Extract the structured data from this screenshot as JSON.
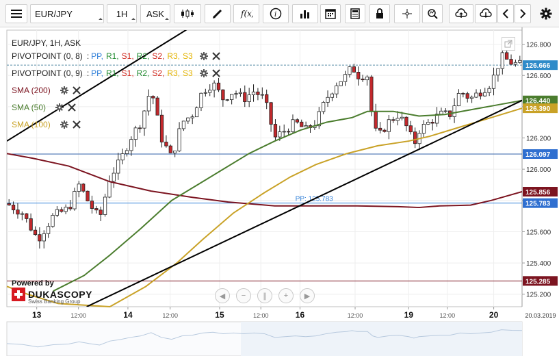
{
  "toolbar": {
    "menu_icon": "hamburger-menu-icon",
    "symbol": "EUR/JPY",
    "timeframe": "1H",
    "price_side": "ASK",
    "icons": [
      "candlestick-chart-icon",
      "pencil-draw-icon",
      "function-fx-icon",
      "info-icon",
      "bar-volume-icon",
      "calendar-icon",
      "news-icon",
      "lock-icon",
      "crosshair-icon",
      "zoom-icon",
      "upload-cloud-icon",
      "download-cloud-icon",
      "arrow-left-icon",
      "arrow-right-icon",
      "gear-settings-icon"
    ]
  },
  "chart_title": "EUR/JPY, 1H, ASK",
  "legend": {
    "pivot1_name": "PIVOTPOINT (0, 8)",
    "pivot2_name": "PIVOTPOINT (0, 9)",
    "pivot_sep": ":",
    "pivot_items": [
      "PP",
      "R1",
      "S1",
      "R2",
      "S2",
      "R3",
      "S3"
    ],
    "pivot_colors": [
      "#2f7fd8",
      "#1e8a2e",
      "#d0281e",
      "#1e8a2e",
      "#d0281e",
      "#e3b300",
      "#e3b300"
    ],
    "sma200": "SMA (200)",
    "sma50": "SMA (50)",
    "sma100": "SMA (100)"
  },
  "branding": {
    "powered_by": "Powered by",
    "logo_text": "DUKASCOPY",
    "logo_sub": "Swiss Banking Group"
  },
  "colors": {
    "sma200": "#7c1420",
    "sma50": "#4b7d2e",
    "sma100": "#c9a227",
    "candle_up": "#ffffff",
    "candle_down": "#c3282c",
    "trendline": "#000000",
    "pp_line": "#2f7fd8",
    "price_badge": "#2e8bc9"
  },
  "chart_data": {
    "type": "candlestick",
    "symbol": "EUR/JPY",
    "timeframe": "1H",
    "y_ticks": [
      125.2,
      125.4,
      125.6,
      125.8,
      126.0,
      126.2,
      126.4,
      126.6,
      126.8
    ],
    "y_tick_labels": [
      "125.200",
      "125.400",
      "125.600",
      "125.800",
      "126.000",
      "126.200",
      "126.400",
      "126.600",
      "126.800"
    ],
    "ylim": [
      125.12,
      126.89
    ],
    "x_ticks": [
      {
        "label": "13",
        "major": true,
        "frac": 0.058
      },
      {
        "label": "12:00",
        "major": false,
        "frac": 0.139
      },
      {
        "label": "14",
        "major": true,
        "frac": 0.235
      },
      {
        "label": "12:00",
        "major": false,
        "frac": 0.317
      },
      {
        "label": "15",
        "major": true,
        "frac": 0.413
      },
      {
        "label": "12:00",
        "major": false,
        "frac": 0.493
      },
      {
        "label": "16",
        "major": true,
        "frac": 0.569
      },
      {
        "label": "12:00",
        "major": false,
        "frac": 0.676
      },
      {
        "label": "19",
        "major": true,
        "frac": 0.78
      },
      {
        "label": "12:00",
        "major": false,
        "frac": 0.855
      },
      {
        "label": "20",
        "major": true,
        "frac": 0.945
      }
    ],
    "date_label": "20.03.2019",
    "horizontal_lines": [
      {
        "name": "PP",
        "value": 125.783,
        "label": "PP: 125.783",
        "color": "#2f7fd8"
      },
      {
        "name": "current",
        "value": 126.666,
        "color": "#5a8fa8"
      },
      {
        "name": "level",
        "value": 126.097,
        "color": "#2f5fa8"
      },
      {
        "name": "level",
        "value": 125.285,
        "color": "#7c1420"
      }
    ],
    "price_badges": [
      {
        "value": 126.666,
        "label": "126.666",
        "color": "#2e8bc9"
      },
      {
        "value": 126.44,
        "label": "126.440",
        "color": "#4b7d2e"
      },
      {
        "value": 126.39,
        "label": "126.390",
        "color": "#c9a227"
      },
      {
        "value": 126.097,
        "label": "126.097",
        "color": "#2f6fd0"
      },
      {
        "value": 125.856,
        "label": "125.856",
        "color": "#7c1420"
      },
      {
        "value": 125.783,
        "label": "125.783",
        "color": "#2f6fd0"
      },
      {
        "value": 125.285,
        "label": "125.285",
        "color": "#7c1420"
      }
    ],
    "trendlines": [
      {
        "x": [
          0.0,
          0.46
        ],
        "y": [
          126.18,
          127.12
        ]
      },
      {
        "x": [
          0.155,
          1.0
        ],
        "y": [
          125.12,
          126.44
        ]
      }
    ],
    "sma200_anchors": [
      [
        0,
        126.1
      ],
      [
        0.05,
        126.07
      ],
      [
        0.12,
        126.02
      ],
      [
        0.2,
        125.92
      ],
      [
        0.28,
        125.86
      ],
      [
        0.36,
        125.82
      ],
      [
        0.43,
        125.79
      ],
      [
        0.52,
        125.765
      ],
      [
        0.6,
        125.765
      ],
      [
        0.68,
        125.765
      ],
      [
        0.76,
        125.76
      ],
      [
        0.8,
        125.755
      ],
      [
        0.84,
        125.765
      ],
      [
        0.9,
        125.77
      ],
      [
        0.94,
        125.8
      ],
      [
        1.0,
        125.856
      ]
    ],
    "sma50_anchors": [
      [
        0.09,
        125.22
      ],
      [
        0.15,
        125.32
      ],
      [
        0.2,
        125.45
      ],
      [
        0.26,
        125.62
      ],
      [
        0.32,
        125.8
      ],
      [
        0.37,
        125.9
      ],
      [
        0.42,
        126.0
      ],
      [
        0.47,
        126.1
      ],
      [
        0.52,
        126.18
      ],
      [
        0.57,
        126.25
      ],
      [
        0.62,
        126.3
      ],
      [
        0.67,
        126.33
      ],
      [
        0.7,
        126.37
      ],
      [
        0.75,
        126.37
      ],
      [
        0.8,
        126.34
      ],
      [
        0.85,
        126.35
      ],
      [
        0.9,
        126.38
      ],
      [
        0.95,
        126.41
      ],
      [
        1.0,
        126.44
      ]
    ],
    "sma100_anchors": [
      [
        0.0,
        125.25
      ],
      [
        0.04,
        125.2
      ],
      [
        0.1,
        125.14
      ],
      [
        0.2,
        125.12
      ],
      [
        0.27,
        125.25
      ],
      [
        0.33,
        125.4
      ],
      [
        0.38,
        125.55
      ],
      [
        0.44,
        125.72
      ],
      [
        0.5,
        125.85
      ],
      [
        0.55,
        125.95
      ],
      [
        0.6,
        126.03
      ],
      [
        0.66,
        126.1
      ],
      [
        0.72,
        126.15
      ],
      [
        0.78,
        126.18
      ],
      [
        0.82,
        126.21
      ],
      [
        0.88,
        126.27
      ],
      [
        0.94,
        126.33
      ],
      [
        1.0,
        126.39
      ]
    ],
    "price_anchors": [
      [
        0.0,
        125.78
      ],
      [
        0.03,
        125.72
      ],
      [
        0.06,
        125.55
      ],
      [
        0.09,
        125.7
      ],
      [
        0.12,
        125.75
      ],
      [
        0.14,
        125.9
      ],
      [
        0.16,
        125.78
      ],
      [
        0.18,
        125.68
      ],
      [
        0.2,
        125.95
      ],
      [
        0.22,
        126.05
      ],
      [
        0.24,
        126.2
      ],
      [
        0.26,
        126.3
      ],
      [
        0.28,
        126.52
      ],
      [
        0.3,
        126.2
      ],
      [
        0.32,
        126.07
      ],
      [
        0.34,
        126.3
      ],
      [
        0.36,
        126.35
      ],
      [
        0.38,
        126.5
      ],
      [
        0.4,
        126.55
      ],
      [
        0.42,
        126.45
      ],
      [
        0.44,
        126.5
      ],
      [
        0.46,
        126.45
      ],
      [
        0.48,
        126.5
      ],
      [
        0.5,
        126.45
      ],
      [
        0.52,
        126.2
      ],
      [
        0.54,
        126.25
      ],
      [
        0.56,
        126.3
      ],
      [
        0.58,
        126.25
      ],
      [
        0.6,
        126.3
      ],
      [
        0.62,
        126.45
      ],
      [
        0.64,
        126.55
      ],
      [
        0.66,
        126.6
      ],
      [
        0.67,
        126.66
      ],
      [
        0.68,
        126.6
      ],
      [
        0.7,
        126.6
      ],
      [
        0.71,
        126.3
      ],
      [
        0.72,
        126.2
      ],
      [
        0.74,
        126.3
      ],
      [
        0.76,
        126.35
      ],
      [
        0.78,
        126.25
      ],
      [
        0.79,
        126.15
      ],
      [
        0.8,
        126.25
      ],
      [
        0.82,
        126.3
      ],
      [
        0.84,
        126.35
      ],
      [
        0.86,
        126.35
      ],
      [
        0.88,
        126.5
      ],
      [
        0.9,
        126.45
      ],
      [
        0.92,
        126.5
      ],
      [
        0.94,
        126.55
      ],
      [
        0.96,
        126.72
      ],
      [
        0.98,
        126.68
      ],
      [
        1.0,
        126.666
      ]
    ],
    "candle_count": 118
  }
}
